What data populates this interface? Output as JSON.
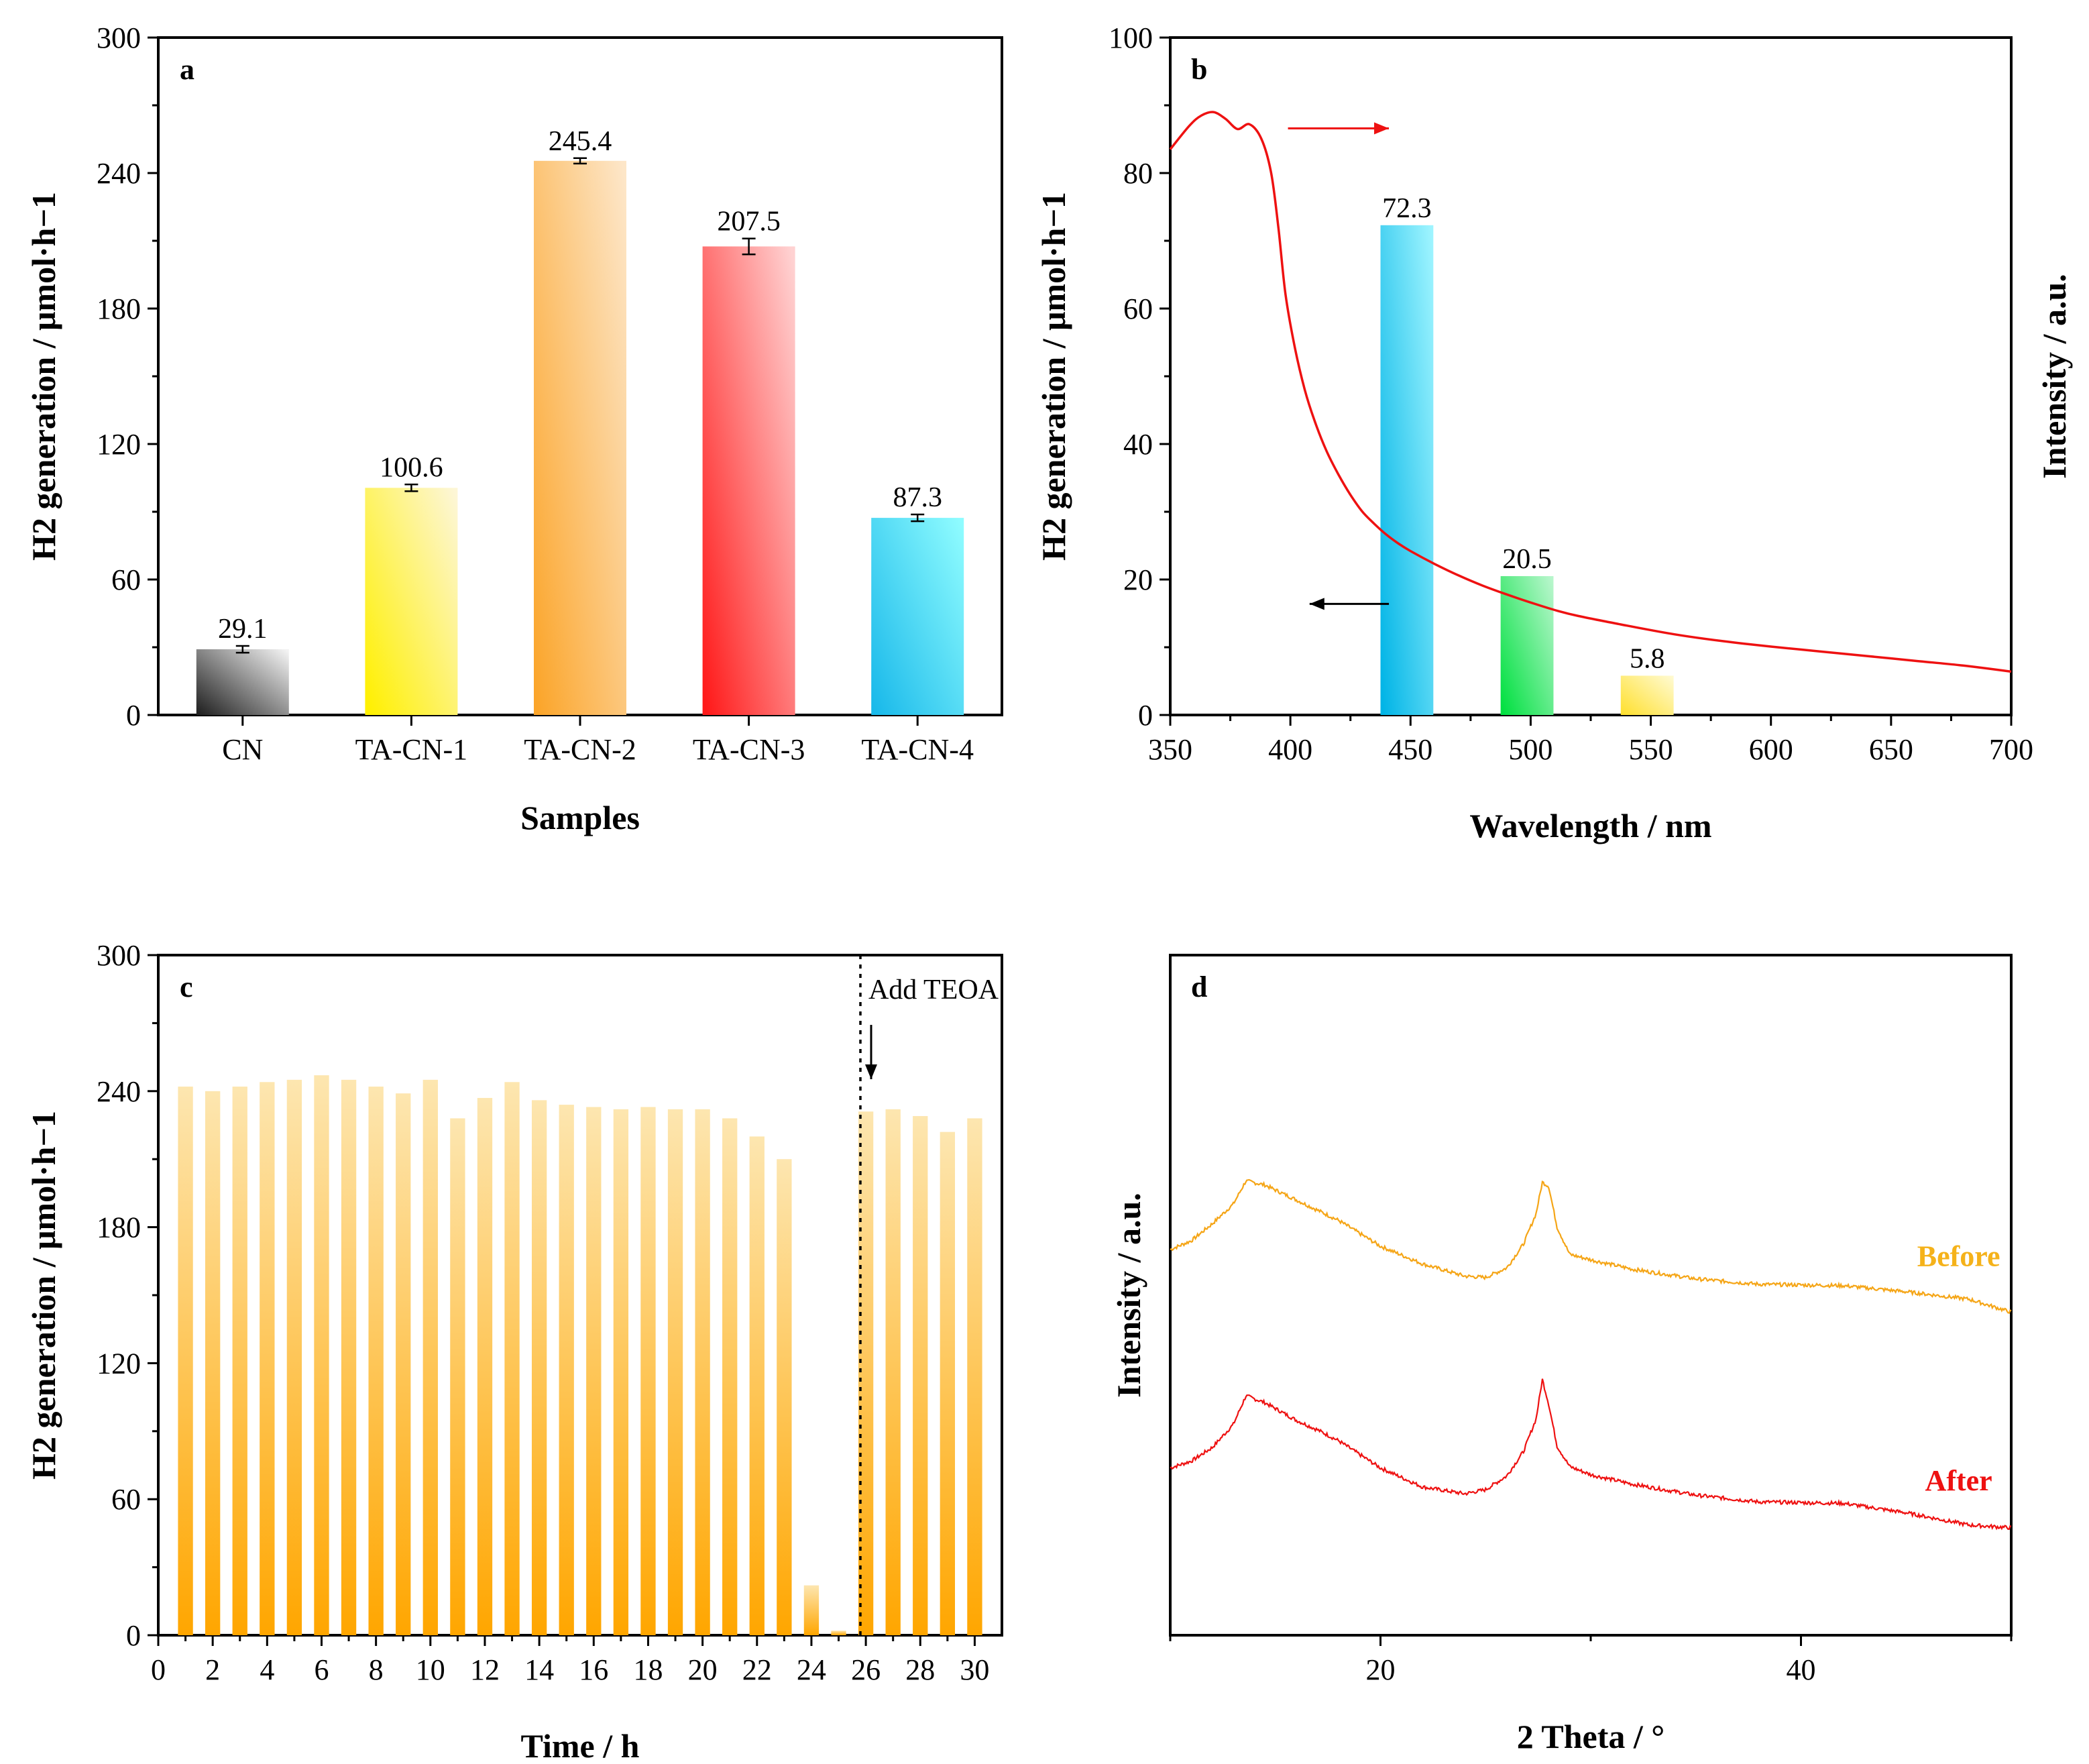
{
  "chart_data": [
    {
      "panel": "a",
      "type": "bar",
      "xlabel": "Samples",
      "ylabel": "H2 generation / μmol·h−1",
      "ylim": [
        0,
        300
      ],
      "yticks": [
        0,
        60,
        120,
        180,
        240,
        300
      ],
      "categories": [
        "CN",
        "TA-CN-1",
        "TA-CN-2",
        "TA-CN-3",
        "TA-CN-4"
      ],
      "values": [
        29.1,
        100.6,
        245.4,
        207.5,
        87.3
      ],
      "value_labels": [
        "29.1",
        "100.6",
        "245.4",
        "207.5",
        "87.3"
      ],
      "errors": [
        1.5,
        1.5,
        1.2,
        3.5,
        1.5
      ],
      "colors": [
        [
          "#222222",
          "#f2f2f2"
        ],
        [
          "#fff000",
          "#fdf6d6"
        ],
        [
          "#fba52a",
          "#fde6c8"
        ],
        [
          "#ff1a1a",
          "#ffd2d2"
        ],
        [
          "#19b9ea",
          "#8ffcff"
        ]
      ]
    },
    {
      "panel": "b",
      "type": "bar",
      "xlabel": "Wavelength / nm",
      "ylabel": "H2 generation / μmol·h−1",
      "ylabel_right": "Intensity / a.u.",
      "xlim": [
        350,
        700
      ],
      "xticks": [
        350,
        400,
        450,
        500,
        550,
        600,
        650,
        700
      ],
      "ylim": [
        0,
        100
      ],
      "yticks": [
        0,
        20,
        40,
        60,
        80,
        100
      ],
      "x": [
        450,
        500,
        550
      ],
      "values": [
        72.3,
        20.5,
        5.8
      ],
      "value_labels": [
        "72.3",
        "20.5",
        "5.8"
      ],
      "bar_width_nm": 22,
      "colors": [
        [
          "#00b4e6",
          "#9ef4ff"
        ],
        [
          "#00e040",
          "#b8f6cc"
        ],
        [
          "#ffe030",
          "#fffad0"
        ]
      ],
      "absorption_curve": {
        "color": "#ee1111",
        "x": [
          350,
          358,
          363,
          368,
          373,
          378,
          383,
          388,
          392,
          395,
          398,
          402,
          406,
          410,
          415,
          420,
          425,
          430,
          435,
          440,
          445,
          450,
          460,
          470,
          480,
          490,
          500,
          510,
          520,
          540,
          560,
          580,
          600,
          620,
          640,
          660,
          680,
          700
        ],
        "y": [
          83.5,
          87.0,
          88.5,
          89.0,
          88.0,
          86.5,
          87.2,
          85.0,
          80.0,
          72.0,
          62.0,
          54.0,
          48.0,
          43.5,
          39.0,
          35.5,
          32.5,
          30.0,
          28.2,
          26.6,
          25.3,
          24.2,
          22.3,
          20.6,
          19.1,
          17.8,
          16.6,
          15.5,
          14.6,
          13.2,
          11.9,
          10.9,
          10.1,
          9.4,
          8.7,
          8.0,
          7.3,
          6.4
        ]
      },
      "arrows": [
        {
          "direction": "right",
          "color": "#ee1111",
          "x_from": 399,
          "x_to": 441,
          "y": 86.6
        },
        {
          "direction": "left",
          "color": "#000000",
          "x_from": 441,
          "x_to": 408,
          "y": 16.4
        }
      ]
    },
    {
      "panel": "c",
      "type": "bar",
      "xlabel": "Time / h",
      "ylabel": "H2 generation / μmol·h−1",
      "xlim": [
        0,
        31
      ],
      "xticks": [
        0,
        2,
        4,
        6,
        8,
        10,
        12,
        14,
        16,
        18,
        20,
        22,
        24,
        26,
        28,
        30
      ],
      "ylim": [
        0,
        300
      ],
      "yticks": [
        0,
        60,
        120,
        180,
        240,
        300
      ],
      "x": [
        1,
        2,
        3,
        4,
        5,
        6,
        7,
        8,
        9,
        10,
        11,
        12,
        13,
        14,
        15,
        16,
        17,
        18,
        19,
        20,
        21,
        22,
        23,
        24,
        25,
        26,
        27,
        28,
        29,
        30
      ],
      "values": [
        242,
        240,
        242,
        244,
        245,
        247,
        245,
        242,
        239,
        245,
        228,
        237,
        244,
        236,
        234,
        233,
        232,
        233,
        232,
        232,
        228,
        220,
        210,
        22,
        2,
        231,
        232,
        229,
        222,
        228
      ],
      "bar_width_h": 0.55,
      "colors": [
        "#ffa600",
        "#fde6b0"
      ],
      "annotation": {
        "text": "Add TEOA",
        "x": 25.8
      }
    },
    {
      "panel": "d",
      "type": "line",
      "xlabel": "2 Theta / °",
      "ylabel": "Intensity / a.u.",
      "xlim": [
        10,
        50
      ],
      "xticks": [
        20,
        40
      ],
      "ylim": [
        0,
        100
      ],
      "series": [
        {
          "name": "Before",
          "color": "#f5a516",
          "label_color": "#f5b21a",
          "x": [
            10,
            11,
            12,
            13,
            13.6,
            14.5,
            16,
            18,
            20,
            22,
            24,
            25,
            26,
            26.8,
            27.4,
            27.7,
            28.0,
            28.4,
            29.0,
            30,
            32,
            35,
            38,
            42,
            45,
            48,
            50
          ],
          "y": [
            56.7,
            58.0,
            60.5,
            63.4,
            66.8,
            66.2,
            64.0,
            61.0,
            57.2,
            54.6,
            52.8,
            52.6,
            54.0,
            57.5,
            62.0,
            66.6,
            66.0,
            60.0,
            56.0,
            55.2,
            53.8,
            52.4,
            51.6,
            51.4,
            50.5,
            49.4,
            47.5
          ]
        },
        {
          "name": "After",
          "color": "#ee1111",
          "label_color": "#ee1111",
          "x": [
            10,
            11,
            12,
            13,
            13.6,
            14.5,
            16,
            17,
            18,
            20,
            22,
            24,
            25,
            26,
            26.8,
            27.4,
            27.7,
            28.0,
            28.4,
            29.0,
            30,
            32,
            35,
            38,
            42,
            45,
            48,
            50
          ],
          "y": [
            24.6,
            25.6,
            27.6,
            31.0,
            35.2,
            34.2,
            31.6,
            30.2,
            28.6,
            24.6,
            21.8,
            20.8,
            21.4,
            23.4,
            27.0,
            31.8,
            37.6,
            34.0,
            27.8,
            24.8,
            23.6,
            22.2,
            20.6,
            19.6,
            19.4,
            18.0,
            16.2,
            15.8
          ]
        }
      ]
    }
  ],
  "panels": {
    "a": {
      "letter": "a"
    },
    "b": {
      "letter": "b"
    },
    "c": {
      "letter": "c"
    },
    "d": {
      "letter": "d"
    }
  }
}
